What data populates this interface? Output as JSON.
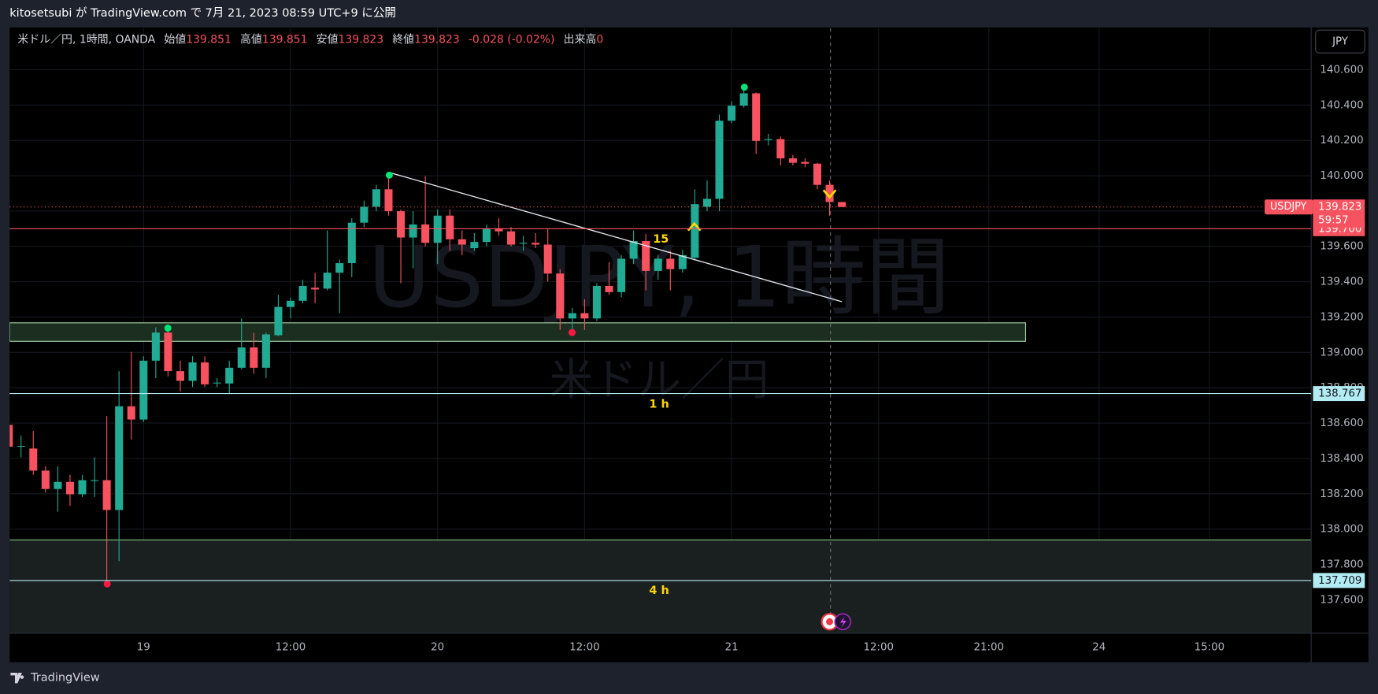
{
  "header": "kitosetsubi が TradingView.com で 7月 21, 2023 08:59 UTC+9 に公開",
  "legend": {
    "symbol": "米ドル／円, 1時間, OANDA",
    "fields": [
      {
        "label": "始値",
        "value": 139.851
      },
      {
        "label": "高値",
        "value": 139.851
      },
      {
        "label": "安値",
        "value": 139.823
      },
      {
        "label": "終値",
        "value": 139.823
      }
    ],
    "change": "-0.028 (-0.02%)",
    "volume_label": "出来高",
    "volume": 0
  },
  "currency": "JPY",
  "watermark": {
    "title": "USDJPY, 1時間",
    "subtitle": "米ドル／円"
  },
  "footer": "TradingView",
  "chart_data": {
    "type": "candlestick",
    "categories": [
      null,
      null,
      null,
      null,
      null,
      null,
      null,
      null,
      null,
      null,
      null,
      "19",
      null,
      null,
      null,
      null,
      null,
      null,
      null,
      null,
      null,
      null,
      null,
      "12:00",
      null,
      null,
      null,
      null,
      null,
      null,
      null,
      null,
      null,
      null,
      null,
      "20",
      null,
      null,
      null,
      null,
      null,
      null,
      null,
      null,
      null,
      null,
      null,
      "12:00",
      null,
      null,
      null,
      null,
      null,
      null,
      null,
      null,
      null,
      null,
      null,
      "21",
      null,
      null,
      null,
      null,
      null,
      null,
      null,
      null,
      null,
      null,
      null,
      "12:00",
      null,
      null,
      null,
      null,
      null,
      null,
      null,
      null,
      "21:00",
      null,
      null,
      null,
      null,
      null,
      null,
      null,
      null,
      "24",
      null,
      null,
      null,
      null,
      null,
      null,
      null,
      null,
      "15:00",
      null,
      null,
      null,
      null,
      null,
      null,
      null
    ],
    "open": [
      138.59,
      138.466,
      138.456,
      138.331,
      138.227,
      138.267,
      138.197,
      138.277,
      138.277,
      138.108,
      138.695,
      138.62,
      138.953,
      139.112,
      138.894,
      138.839,
      138.943,
      138.829,
      138.824,
      138.913,
      139.028,
      138.913,
      139.097,
      139.257,
      139.292,
      139.366,
      139.361,
      139.451,
      139.505,
      139.734,
      139.824,
      139.923,
      139.799,
      139.65,
      139.724,
      139.62,
      139.774,
      139.64,
      139.59,
      139.625,
      139.7,
      139.685,
      139.62,
      139.62,
      139.61,
      139.446,
      139.192,
      139.222,
      139.192,
      139.376,
      139.341,
      139.53,
      139.63,
      139.461,
      139.53,
      139.471,
      139.535,
      139.824,
      139.869,
      140.311,
      140.396,
      140.466,
      140.207,
      140.207,
      140.098,
      140.078,
      140.068,
      139.948,
      139.851,
      null,
      null,
      null,
      null,
      null,
      null,
      null,
      null,
      null,
      null,
      null,
      null,
      null,
      null,
      null,
      null,
      null,
      null,
      null,
      null,
      null,
      null,
      null,
      null,
      null,
      null,
      null,
      null,
      null,
      null,
      null,
      null,
      null,
      null,
      null,
      null,
      null
    ],
    "high": [
      138.615,
      138.53,
      138.555,
      138.356,
      138.356,
      138.307,
      138.307,
      138.406,
      138.64,
      138.894,
      139.003,
      138.978,
      139.142,
      139.152,
      138.953,
      138.978,
      138.978,
      138.854,
      138.953,
      139.192,
      139.112,
      139.112,
      139.326,
      139.311,
      139.411,
      139.451,
      139.69,
      139.525,
      139.759,
      139.859,
      139.948,
      140.018,
      139.809,
      139.799,
      139.998,
      139.809,
      139.809,
      139.69,
      139.675,
      139.724,
      139.759,
      139.709,
      139.66,
      139.675,
      139.7,
      139.471,
      139.252,
      139.301,
      139.391,
      139.51,
      139.55,
      139.69,
      139.67,
      139.55,
      139.575,
      139.58,
      139.923,
      139.973,
      140.346,
      140.421,
      140.496,
      140.471,
      140.237,
      140.222,
      140.117,
      140.098,
      140.073,
      139.973,
      139.851,
      null,
      null,
      null,
      null,
      null,
      null,
      null,
      null,
      null,
      null,
      null,
      null,
      null,
      null,
      null,
      null,
      null,
      null,
      null,
      null,
      null,
      null,
      null,
      null,
      null,
      null,
      null,
      null,
      null,
      null,
      null,
      null,
      null,
      null,
      null,
      null,
      null
    ],
    "low": [
      138.446,
      138.406,
      138.307,
      138.207,
      138.098,
      138.132,
      138.182,
      138.182,
      137.685,
      137.819,
      138.506,
      138.605,
      138.854,
      138.864,
      138.779,
      138.804,
      138.804,
      138.804,
      138.764,
      138.903,
      138.879,
      138.854,
      139.092,
      139.192,
      139.277,
      139.277,
      139.351,
      139.222,
      139.426,
      139.709,
      139.799,
      139.774,
      139.391,
      139.476,
      139.6,
      139.5,
      139.575,
      139.55,
      139.575,
      139.6,
      139.66,
      139.6,
      139.575,
      139.59,
      139.401,
      139.127,
      139.127,
      139.127,
      139.177,
      139.326,
      139.311,
      139.5,
      139.351,
      139.411,
      139.351,
      139.451,
      139.525,
      139.799,
      139.799,
      140.297,
      140.386,
      140.122,
      140.172,
      140.058,
      140.058,
      140.048,
      139.923,
      139.774,
      139.823,
      null,
      null,
      null,
      null,
      null,
      null,
      null,
      null,
      null,
      null,
      null,
      null,
      null,
      null,
      null,
      null,
      null,
      null,
      null,
      null,
      null,
      null,
      null,
      null,
      null,
      null,
      null,
      null,
      null,
      null,
      null,
      null,
      null,
      null,
      null,
      null,
      null
    ],
    "close": [
      138.466,
      138.471,
      138.331,
      138.227,
      138.267,
      138.197,
      138.277,
      138.277,
      138.108,
      138.695,
      138.62,
      138.953,
      139.112,
      138.894,
      138.839,
      138.943,
      138.819,
      138.829,
      138.913,
      139.028,
      138.913,
      139.102,
      139.257,
      139.292,
      139.376,
      139.356,
      139.451,
      139.505,
      139.734,
      139.824,
      139.923,
      139.799,
      139.65,
      139.724,
      139.62,
      139.774,
      139.64,
      139.61,
      139.625,
      139.7,
      139.685,
      139.61,
      139.62,
      139.61,
      139.446,
      139.192,
      139.222,
      139.192,
      139.376,
      139.341,
      139.53,
      139.63,
      139.461,
      139.53,
      139.471,
      139.55,
      139.839,
      139.869,
      140.311,
      140.396,
      140.466,
      140.197,
      140.207,
      140.098,
      140.073,
      140.068,
      139.948,
      139.851,
      139.823,
      null,
      null,
      null,
      null,
      null,
      null,
      null,
      null,
      null,
      null,
      null,
      null,
      null,
      null,
      null,
      null,
      null,
      null,
      null,
      null,
      null,
      null,
      null,
      null,
      null,
      null,
      null,
      null,
      null,
      null,
      null,
      null,
      null,
      null,
      null,
      null,
      null
    ],
    "up_color": "#22ab94",
    "down_color": "#f7525f",
    "ylim": [
      137.411,
      140.834
    ],
    "yticks": [
      {
        "value": 137.6,
        "label": "137.600"
      },
      {
        "value": 137.8,
        "label": "137.800"
      },
      {
        "value": 138.0,
        "label": "138.000"
      },
      {
        "value": 138.2,
        "label": "138.200"
      },
      {
        "value": 138.4,
        "label": "138.400"
      },
      {
        "value": 138.6,
        "label": "138.600"
      },
      {
        "value": 138.8,
        "label": "138.800"
      },
      {
        "value": 139.0,
        "label": "139.000"
      },
      {
        "value": 139.2,
        "label": "139.200"
      },
      {
        "value": 139.4,
        "label": "139.400"
      },
      {
        "value": 139.6,
        "label": "139.600"
      },
      {
        "value": 139.8,
        "label": "139.800"
      },
      {
        "value": 140.0,
        "label": "140.000"
      },
      {
        "value": 140.2,
        "label": "140.200"
      },
      {
        "value": 140.4,
        "label": "140.400"
      },
      {
        "value": 140.6,
        "label": "140.600"
      }
    ],
    "grid": true,
    "annotations": [
      "15",
      "1 h",
      "4 h"
    ],
    "price_lines": [
      {
        "value": 139.7,
        "label": "139.700",
        "color": "#f7525f"
      },
      {
        "value": 138.767,
        "color": "#b2ebf2"
      },
      {
        "value": 137.709,
        "color": "#b2ebf2"
      }
    ],
    "last_price": {
      "name": "USDJPY",
      "value": 139.823,
      "countdown": "59:57",
      "color": "#f7525f"
    }
  }
}
